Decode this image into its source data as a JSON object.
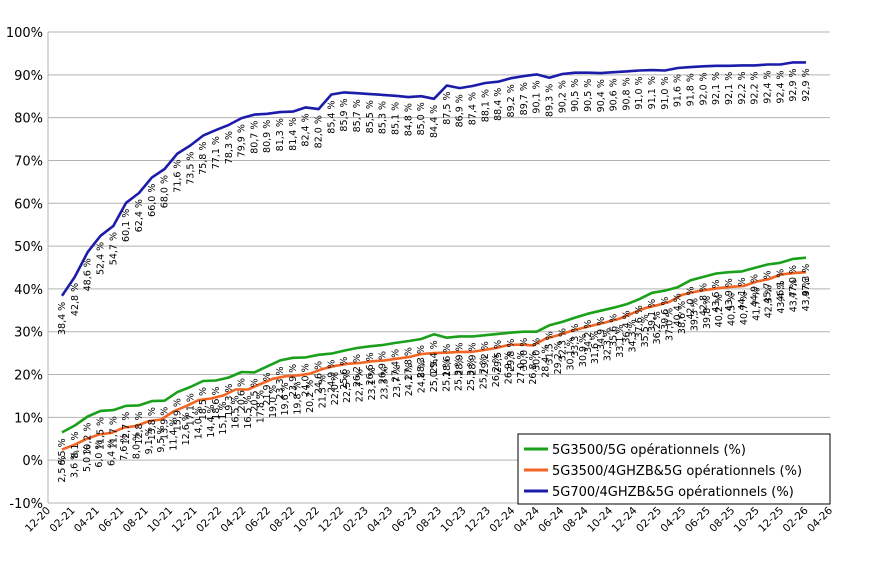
{
  "chart_data": {
    "type": "line",
    "y_unit": "%",
    "ylim": [
      -10,
      100
    ],
    "y_ticks": [
      "100%",
      "90%",
      "80%",
      "70%",
      "60%",
      "50%",
      "40%",
      "30%",
      "20%",
      "10%",
      "0%",
      "-10%"
    ],
    "x_ticks": [
      "12-20",
      "02-21",
      "04-21",
      "06-21",
      "08-21",
      "10-21",
      "12-21",
      "02-22",
      "04-22",
      "06-22",
      "08-22",
      "10-22",
      "12-22",
      "02-23",
      "04-23",
      "06-23",
      "08-23",
      "10-23",
      "12-23",
      "02-24",
      "04-24",
      "06-24",
      "08-24",
      "10-24",
      "12-24",
      "02-25",
      "04-25",
      "06-25",
      "08-25",
      "10-25",
      "12-25",
      "02-26",
      "04-26"
    ],
    "grid": "horizontal",
    "legend_position": "bottom-right",
    "series": [
      {
        "name": "5G3500/5G opérationnels (%)",
        "color": "#1aa01a",
        "values": [
          6.5,
          8.1,
          10.2,
          11.5,
          11.7,
          12.7,
          12.8,
          13.8,
          13.9,
          15.9,
          17.1,
          18.5,
          18.6,
          19.3,
          20.6,
          20.5,
          21.9,
          23.3,
          23.9,
          24.0,
          24.6,
          24.9,
          25.6,
          26.2,
          26.6,
          26.9,
          27.4,
          27.8,
          28.3,
          29.4,
          28.6,
          28.9,
          28.9,
          29.2,
          29.5,
          29.8,
          30.0,
          30.0,
          31.5,
          32.3,
          33.3,
          34.2,
          34.9,
          35.6,
          36.4,
          37.6,
          39.1,
          39.6,
          40.4,
          42.0,
          42.8,
          43.6,
          43.9,
          44.1,
          44.9,
          45.7,
          46.1,
          47.0,
          47.3
        ],
        "labels": [
          "6,5 %",
          "8,1 %",
          "10,2 %",
          "11,5 %",
          "11,7 %",
          "12,7 %",
          "12,8 %",
          "13,8 %",
          "13,9 %",
          "15,9 %",
          "17,1 %",
          "18,5 %",
          "18,6 %",
          "19,3 %",
          "20,6 %",
          "20,5 %",
          "21,9 %",
          "23,3 %",
          "23,9 %",
          "24,0 %",
          "24,6 %",
          "24,9 %",
          "25,6 %",
          "26,2 %",
          "26,6 %",
          "26,9 %",
          "27,4 %",
          "27,8 %",
          "28,3 %",
          "29,4 %",
          "28,6 %",
          "28,9 %",
          "28,9 %",
          "29,2 %",
          "29,5 %",
          "29,8 %",
          "30,0 %",
          "30,0 %",
          "31,5 %",
          "32,3 %",
          "33,3 %",
          "34,2 %",
          "34,9 %",
          "35,6 %",
          "36,4 %",
          "37,6 %",
          "39,1 %",
          "39,6 %",
          "40,4 %",
          "42,0 %",
          "42,8 %",
          "43,6 %",
          "43,9 %",
          "44,1 %",
          "44,9 %",
          "45,7 %",
          "46,1 %",
          "47,0 %",
          "47,3 %"
        ]
      },
      {
        "name": "5G3500/4GHZB&5G opérationnels (%)",
        "color": "#f26522",
        "values": [
          2.5,
          3.6,
          5.0,
          6.0,
          6.4,
          7.6,
          8.0,
          9.1,
          9.5,
          11.4,
          12.6,
          14.0,
          14.4,
          15.1,
          16.5,
          16.5,
          17.8,
          19.0,
          19.6,
          19.8,
          20.2,
          21.3,
          22.0,
          22.5,
          22.7,
          23.1,
          23.3,
          23.7,
          24.1,
          24.8,
          25.0,
          25.1,
          25.3,
          25.3,
          25.7,
          26.2,
          26.9,
          27.0,
          26.8,
          28.4,
          29.2,
          30.1,
          30.9,
          31.6,
          32.3,
          33.1,
          34.3,
          35.5,
          36.2,
          37.0,
          38.6,
          39.3,
          39.8,
          40.2,
          40.5,
          40.7,
          41.7,
          42.3,
          43.4,
          43.7,
          43.9
        ],
        "labels": [
          "2,5 %",
          "3,6 %",
          "5,0 %",
          "6,0 %",
          "6,4 %",
          "7,6 %",
          "8,0 %",
          "9,1 %",
          "9,5 %",
          "11,4 %",
          "12,6 %",
          "14,0 %",
          "14,4 %",
          "15,1 %",
          "16,5 %",
          "16,5 %",
          "17,8 %",
          "19,0 %",
          "19,6 %",
          "19,8 %",
          "20,2 %",
          "21,3 %",
          "22,0 %",
          "22,5 %",
          "22,7 %",
          "23,1 %",
          "23,3 %",
          "23,7 %",
          "24,1 %",
          "24,8 %",
          "25,0 %",
          "25,1 %",
          "25,3 %",
          "25,3 %",
          "25,7 %",
          "26,2 %",
          "26,9 %",
          "27,0 %",
          "26,8 %",
          "28,4 %",
          "29,2 %",
          "30,1 %",
          "30,9 %",
          "31,6 %",
          "32,3 %",
          "33,1 %",
          "34,3 %",
          "35,5 %",
          "36,2 %",
          "37,0 %",
          "38,6 %",
          "39,3 %",
          "39,8 %",
          "40,2 %",
          "40,5 %",
          "40,7 %",
          "41,7 %",
          "42,3 %",
          "43,4 %",
          "43,7 %",
          "43,9 %"
        ]
      },
      {
        "name": "5G700/4GHZB&5G opérationnels (%)",
        "color": "#1c1caa",
        "values": [
          38.4,
          42.8,
          48.6,
          52.4,
          54.7,
          60.1,
          62.4,
          66.0,
          68.0,
          71.6,
          73.5,
          75.8,
          77.1,
          78.3,
          79.9,
          80.7,
          80.9,
          81.3,
          81.4,
          82.4,
          82.0,
          85.4,
          85.9,
          85.7,
          85.5,
          85.3,
          85.1,
          84.8,
          85.0,
          84.4,
          87.5,
          86.9,
          87.4,
          88.1,
          88.4,
          89.2,
          89.7,
          90.1,
          89.3,
          90.2,
          90.5,
          90.5,
          90.4,
          90.6,
          90.8,
          91.0,
          91.1,
          91.0,
          91.6,
          91.8,
          92.0,
          92.1,
          92.1,
          92.2,
          92.2,
          92.4,
          92.4,
          92.9,
          92.9
        ],
        "labels": [
          "38,4 %",
          "42,8 %",
          "48,6 %",
          "52,4 %",
          "54,7 %",
          "60,1 %",
          "62,4 %",
          "66,0 %",
          "68,0 %",
          "71,6 %",
          "73,5 %",
          "75,8 %",
          "77,1 %",
          "78,3 %",
          "79,9 %",
          "80,7 %",
          "80,9 %",
          "81,3 %",
          "81,4 %",
          "82,4 %",
          "82,0 %",
          "85,4 %",
          "85,9 %",
          "85,7 %",
          "85,5 %",
          "85,3 %",
          "85,1 %",
          "84,8 %",
          "85,0 %",
          "84,4 %",
          "87,5 %",
          "86,9 %",
          "87,4 %",
          "88,1 %",
          "88,4 %",
          "89,2 %",
          "89,7 %",
          "90,1 %",
          "89,3 %",
          "90,2 %",
          "90,5 %",
          "90,5 %",
          "90,4 %",
          "90,6 %",
          "90,8 %",
          "91,0 %",
          "91,1 %",
          "91,0 %",
          "91,6 %",
          "91,8 %",
          "92,0 %",
          "92,1 %",
          "92,1 %",
          "92,2 %",
          "92,2 %",
          "92,4 %",
          "92,4 %",
          "92,9 %",
          "92,9 %"
        ]
      }
    ]
  }
}
